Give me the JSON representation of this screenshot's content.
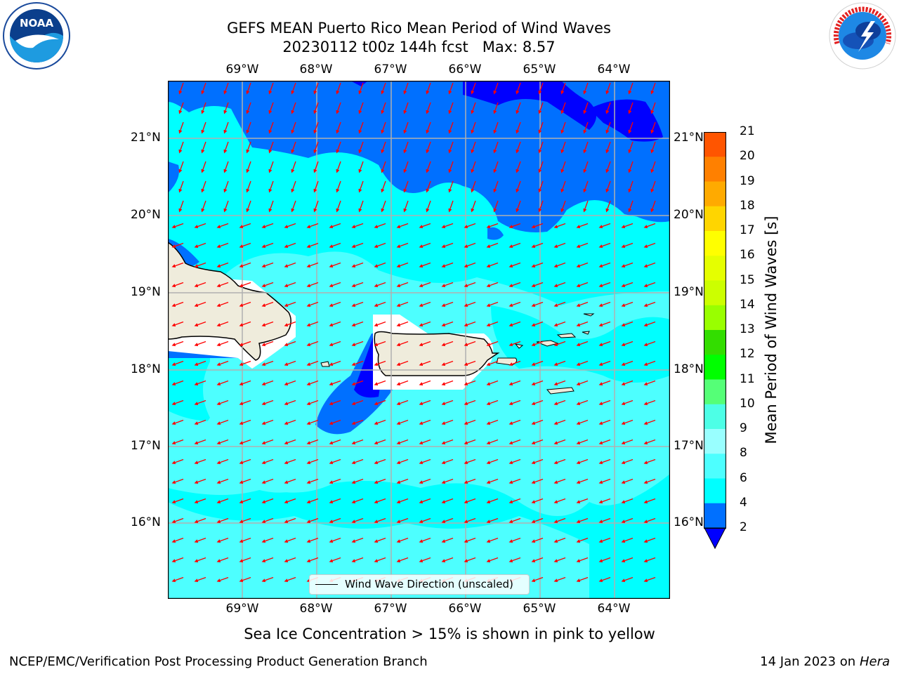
{
  "title": {
    "line1": "GEFS MEAN Puerto Rico Mean Period of Wind Waves",
    "line2": "20230112 t00z 144h fcst   Max: 8.57"
  },
  "logos": {
    "left": {
      "name": "noaa-logo",
      "text": "NOAA"
    },
    "right": {
      "name": "nws-logo",
      "text": "NATIONAL WEATHER SERVICE"
    }
  },
  "map": {
    "lon_labels": [
      "69°W",
      "68°W",
      "67°W",
      "66°W",
      "65°W",
      "64°W"
    ],
    "lat_labels": [
      "21°N",
      "20°N",
      "19°N",
      "18°N",
      "17°N",
      "16°N"
    ],
    "legend_label": "Wind Wave Direction (unscaled)",
    "vector_color": "#ff0000",
    "land_color": "#efecdc",
    "ocean_colors": {
      "2-4": "#0070ff",
      "4-6": "#00ffff",
      "6-8": "#4dffff",
      "below-2": "#0000ff"
    }
  },
  "colorbar": {
    "label": "Mean Period of Wind Waves [s]",
    "ticks": [
      "21",
      "20",
      "19",
      "18",
      "17",
      "16",
      "15",
      "14",
      "13",
      "12",
      "11",
      "10",
      "9",
      "8",
      "6",
      "4",
      "2"
    ],
    "colors": [
      "#ff0000",
      "#ff2a00",
      "#ff5500",
      "#ff8000",
      "#ffaa00",
      "#ffd500",
      "#ffff00",
      "#e5ff00",
      "#ccff00",
      "#99ff00",
      "#33dd00",
      "#00ff00",
      "#55ff77",
      "#4dffe6",
      "#99ffff",
      "#4dffff",
      "#00ffff",
      "#0070ff"
    ],
    "extend_color": "#0000ff"
  },
  "caption": "Sea Ice Concentration > 15% is shown in pink to yellow",
  "footer": {
    "left": "NCEP/EMC/Verification Post Processing Product Generation Branch",
    "date": "14 Jan 2023 on ",
    "machine": "Hera"
  }
}
